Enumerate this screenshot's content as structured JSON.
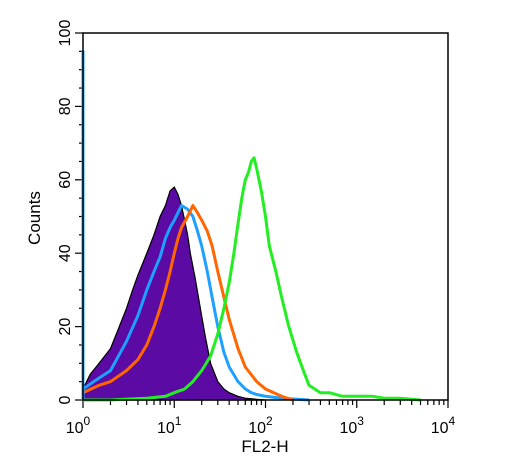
{
  "chart_data": {
    "type": "area",
    "title": "",
    "xlabel": "FL2-H",
    "ylabel": "Counts",
    "xscale": "log",
    "xlim": [
      1,
      10000
    ],
    "ylim": [
      0,
      100
    ],
    "yticks": [
      "0",
      "20",
      "40",
      "60",
      "80",
      "100"
    ],
    "xticks": [
      {
        "base": "10",
        "exp": "0"
      },
      {
        "base": "10",
        "exp": "1"
      },
      {
        "base": "10",
        "exp": "2"
      },
      {
        "base": "10",
        "exp": "3"
      },
      {
        "base": "10",
        "exp": "4"
      }
    ],
    "grid": false,
    "legend": "none",
    "series": [
      {
        "color": "#5b0aa3",
        "style": "filled",
        "x": [
          1.0,
          1.2,
          1.5,
          2.0,
          2.5,
          3.0,
          3.5,
          4.0,
          5.0,
          6.0,
          7.0,
          8.0,
          9.0,
          10.0,
          11.0,
          12.0,
          13.0,
          14.0,
          15.0,
          17.0,
          19.0,
          22.0,
          25.0,
          30.0,
          35.0,
          40.0,
          50.0,
          60.0,
          80.0,
          100.0
        ],
        "y": [
          3,
          7,
          10,
          14,
          20,
          25,
          30,
          34,
          40,
          45,
          50,
          53,
          57,
          58,
          56,
          53,
          49,
          45,
          40,
          33,
          26,
          17,
          10,
          5,
          3,
          2,
          1,
          0.5,
          0.2,
          0
        ]
      },
      {
        "color": "#1ea0ff",
        "style": "line",
        "x": [
          1.0,
          1.5,
          2.0,
          3.0,
          4.0,
          5.0,
          6.0,
          7.0,
          8.0,
          9.0,
          10.0,
          12.0,
          14.0,
          16.0,
          18.0,
          20.0,
          23.0,
          26.0,
          30.0,
          35.0,
          40.0,
          50.0,
          60.0,
          70.0,
          80.0,
          100.0,
          150.0,
          300.0
        ],
        "y": [
          3,
          6,
          8,
          16,
          23,
          30,
          35,
          39,
          44,
          47,
          49,
          53,
          52,
          50,
          46,
          42,
          35,
          28,
          20,
          13,
          9,
          5,
          3,
          2,
          1.5,
          1,
          0.5,
          0
        ]
      },
      {
        "color": "#ff6600",
        "style": "line",
        "x": [
          1.0,
          1.5,
          2.0,
          3.0,
          4.0,
          5.0,
          6.0,
          7.0,
          8.0,
          9.0,
          10.0,
          11.0,
          12.0,
          14.0,
          16.0,
          18.0,
          20.0,
          23.0,
          26.0,
          30.0,
          35.0,
          40.0,
          50.0,
          60.0,
          80.0,
          100.0,
          150.0,
          200.0
        ],
        "y": [
          2,
          4,
          5,
          8,
          11,
          15,
          20,
          25,
          30,
          35,
          40,
          44,
          47,
          50,
          53,
          51,
          49,
          46,
          42,
          35,
          28,
          22,
          14,
          9,
          5,
          3,
          1,
          0
        ]
      },
      {
        "color": "#22ee22",
        "style": "line",
        "x": [
          1.0,
          2.0,
          5.0,
          8.0,
          10.0,
          13.0,
          16.0,
          20.0,
          25.0,
          30.0,
          35.0,
          40.0,
          45.0,
          50.0,
          55.0,
          60.0,
          65.0,
          70.0,
          75.0,
          80.0,
          90.0,
          100.0,
          110.0,
          130.0,
          150.0,
          180.0,
          220.0,
          260.0,
          300.0,
          400.0,
          500.0,
          700.0,
          1000.0,
          1500.0,
          2000.0,
          3000.0,
          5000.0
        ],
        "y": [
          0,
          0,
          0.5,
          1,
          2,
          3,
          5,
          8,
          12,
          18,
          25,
          32,
          40,
          48,
          55,
          60,
          62,
          65,
          66,
          63,
          57,
          50,
          42,
          35,
          28,
          20,
          13,
          8,
          4,
          2,
          2,
          1,
          1,
          1,
          0.5,
          0.5,
          0
        ]
      },
      {
        "color": "#1ea0ff",
        "style": "line",
        "x": [
          1.0,
          1.0,
          1.0
        ],
        "y": [
          0,
          95,
          0
        ]
      }
    ]
  }
}
